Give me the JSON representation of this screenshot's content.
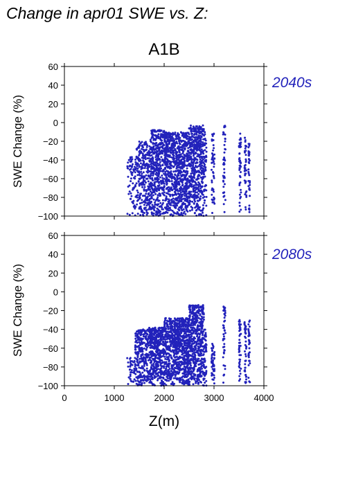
{
  "figure": {
    "title": "Change in apr01 SWE vs. Z:",
    "scenario": "A1B",
    "point_color": "#2222bb"
  },
  "chart_data": [
    {
      "type": "scatter",
      "period": "2040s",
      "xlabel": "",
      "ylabel": "SWE Change (%)",
      "xlim": [
        0,
        4000
      ],
      "ylim": [
        -100,
        60
      ],
      "xticks": [
        "0",
        "1000",
        "2000",
        "3000",
        "4000"
      ],
      "yticks": [
        "60",
        "40",
        "20",
        "0",
        "−20",
        "−40",
        "−60",
        "−80",
        "−100"
      ],
      "show_x_tick_labels": false,
      "grid": false,
      "legend": "none",
      "clusters": [
        {
          "x_range": [
            1260,
            1420
          ],
          "y_range": [
            -100,
            -35
          ],
          "n": 60
        },
        {
          "x_range": [
            1420,
            1700
          ],
          "y_range": [
            -100,
            -20
          ],
          "n": 260
        },
        {
          "x_range": [
            1700,
            2000
          ],
          "y_range": [
            -100,
            -8
          ],
          "n": 450
        },
        {
          "x_range": [
            2000,
            2500
          ],
          "y_range": [
            -100,
            -10
          ],
          "n": 850
        },
        {
          "x_range": [
            2500,
            2800
          ],
          "y_range": [
            -100,
            -3
          ],
          "n": 500
        },
        {
          "x_range": [
            2800,
            2850
          ],
          "y_range": [
            -100,
            -10
          ],
          "n": 45
        },
        {
          "x_range": [
            2950,
            3010
          ],
          "y_range": [
            -100,
            -10
          ],
          "n": 50
        },
        {
          "x_range": [
            3180,
            3230
          ],
          "y_range": [
            -100,
            -3
          ],
          "n": 45
        },
        {
          "x_range": [
            3500,
            3540
          ],
          "y_range": [
            -100,
            -10
          ],
          "n": 45
        },
        {
          "x_range": [
            3610,
            3650
          ],
          "y_range": [
            -100,
            -12
          ],
          "n": 40
        },
        {
          "x_range": [
            3690,
            3720
          ],
          "y_range": [
            -100,
            -22
          ],
          "n": 35
        }
      ]
    },
    {
      "type": "scatter",
      "period": "2080s",
      "xlabel": "Z(m)",
      "ylabel": "SWE Change (%)",
      "xlim": [
        0,
        4000
      ],
      "ylim": [
        -100,
        60
      ],
      "xticks": [
        "0",
        "1000",
        "2000",
        "3000",
        "4000"
      ],
      "yticks": [
        "60",
        "40",
        "20",
        "0",
        "−20",
        "−40",
        "−60",
        "−80",
        "−100"
      ],
      "show_x_tick_labels": true,
      "grid": false,
      "legend": "none",
      "clusters": [
        {
          "x_range": [
            1260,
            1420
          ],
          "y_range": [
            -100,
            -70
          ],
          "n": 40
        },
        {
          "x_range": [
            1420,
            1700
          ],
          "y_range": [
            -100,
            -40
          ],
          "n": 280
        },
        {
          "x_range": [
            1700,
            2000
          ],
          "y_range": [
            -100,
            -38
          ],
          "n": 450
        },
        {
          "x_range": [
            2000,
            2500
          ],
          "y_range": [
            -100,
            -28
          ],
          "n": 850
        },
        {
          "x_range": [
            2500,
            2800
          ],
          "y_range": [
            -100,
            -14
          ],
          "n": 500
        },
        {
          "x_range": [
            2800,
            2850
          ],
          "y_range": [
            -100,
            -40
          ],
          "n": 45
        },
        {
          "x_range": [
            2950,
            3010
          ],
          "y_range": [
            -100,
            -55
          ],
          "n": 50
        },
        {
          "x_range": [
            3180,
            3230
          ],
          "y_range": [
            -100,
            -14
          ],
          "n": 45
        },
        {
          "x_range": [
            3500,
            3540
          ],
          "y_range": [
            -100,
            -30
          ],
          "n": 45
        },
        {
          "x_range": [
            3610,
            3650
          ],
          "y_range": [
            -100,
            -30
          ],
          "n": 40
        },
        {
          "x_range": [
            3690,
            3720
          ],
          "y_range": [
            -100,
            -28
          ],
          "n": 35
        }
      ]
    }
  ]
}
